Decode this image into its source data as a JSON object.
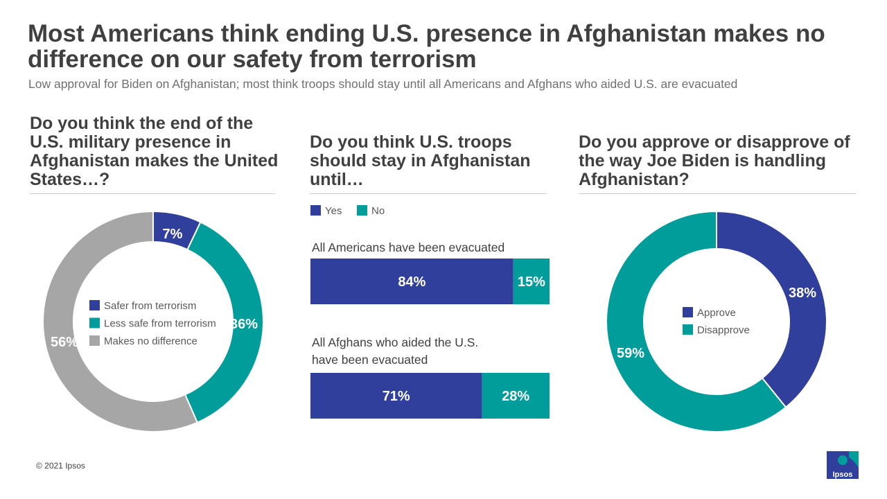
{
  "title": "Most Americans think ending U.S. presence in Afghanistan makes no difference on our safety from terrorism",
  "subtitle": "Low approval for Biden on Afghanistan; most think troops should stay until all Americans and Afghans who aided U.S. are evacuated",
  "copyright": "© 2021 Ipsos",
  "logo_text": "Ipsos",
  "colors": {
    "blue": "#303f9c",
    "teal": "#009d9b",
    "gray": "#a6a6a6"
  },
  "chart_data": [
    {
      "type": "pie",
      "donut": true,
      "question": "Do you think the end of the U.S. military presence in Afghanistan makes the United States…?",
      "slices": [
        {
          "label": "Safer from terrorism",
          "value": 7,
          "display": "7%",
          "color": "#303f9c"
        },
        {
          "label": "Less safe from terrorism",
          "value": 36,
          "display": "36%",
          "color": "#009d9b"
        },
        {
          "label": "Makes no difference",
          "value": 56,
          "display": "56%",
          "color": "#a6a6a6"
        }
      ],
      "legend_placement": "center"
    },
    {
      "type": "bar",
      "orientation": "horizontal",
      "stacked": true,
      "question": "Do you think U.S. troops should stay in Afghanistan until…",
      "legend": [
        "Yes",
        "No"
      ],
      "categories": [
        "All Americans have been evacuated",
        "All Afghans who aided the U.S. have been evacuated"
      ],
      "series": [
        {
          "name": "Yes",
          "values": [
            84,
            71
          ],
          "display": [
            "84%",
            "71%"
          ],
          "color": "#303f9c"
        },
        {
          "name": "No",
          "values": [
            15,
            28
          ],
          "display": [
            "15%",
            "28%"
          ],
          "color": "#009d9b"
        }
      ],
      "legend_placement": "top-left"
    },
    {
      "type": "pie",
      "donut": true,
      "question": "Do you approve or disapprove of the way Joe Biden is handling Afghanistan?",
      "slices": [
        {
          "label": "Approve",
          "value": 38,
          "display": "38%",
          "color": "#303f9c"
        },
        {
          "label": "Disapprove",
          "value": 59,
          "display": "59%",
          "color": "#009d9b"
        }
      ],
      "legend_placement": "center"
    }
  ]
}
